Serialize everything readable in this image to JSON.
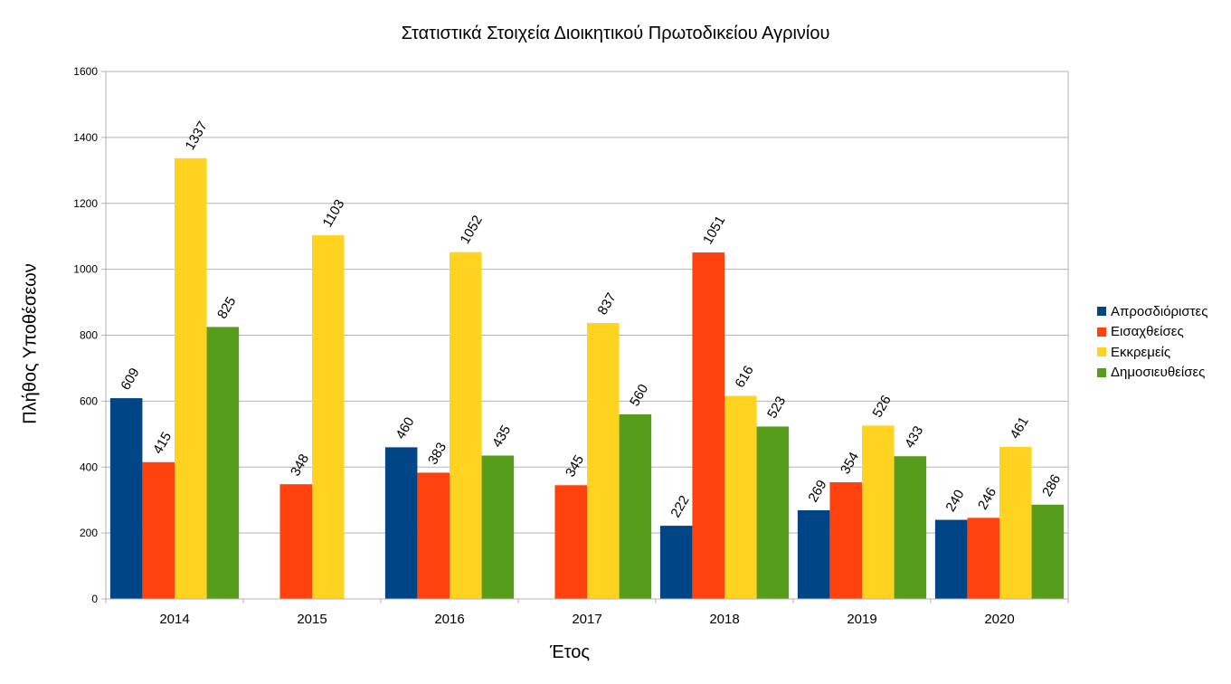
{
  "chart_data": {
    "type": "bar",
    "title": "Στατιστικά Στοιχεία Διοικητικού Πρωτοδικείου Αγρινίου",
    "xlabel": "Έτος",
    "ylabel": "Πλήθος Υποθέσεων",
    "ylim": [
      0,
      1600
    ],
    "yticks": [
      0,
      200,
      400,
      600,
      800,
      1000,
      1200,
      1400,
      1600
    ],
    "grid": true,
    "legend_position": "right",
    "categories": [
      "2014",
      "2015",
      "2016",
      "2017",
      "2018",
      "2019",
      "2020"
    ],
    "series": [
      {
        "name": "Απροσδιόριστες",
        "color": "#004586",
        "values": [
          609,
          null,
          460,
          null,
          222,
          269,
          240
        ]
      },
      {
        "name": "Εισαχθείσες",
        "color": "#ff420e",
        "values": [
          415,
          348,
          383,
          345,
          1051,
          354,
          246
        ]
      },
      {
        "name": "Εκκρεμείς",
        "color": "#ffd320",
        "values": [
          1337,
          1103,
          1052,
          837,
          616,
          526,
          461
        ]
      },
      {
        "name": "Δημοσιευθείσες",
        "color": "#579d1c",
        "values": [
          825,
          null,
          435,
          560,
          523,
          433,
          286
        ]
      }
    ]
  }
}
